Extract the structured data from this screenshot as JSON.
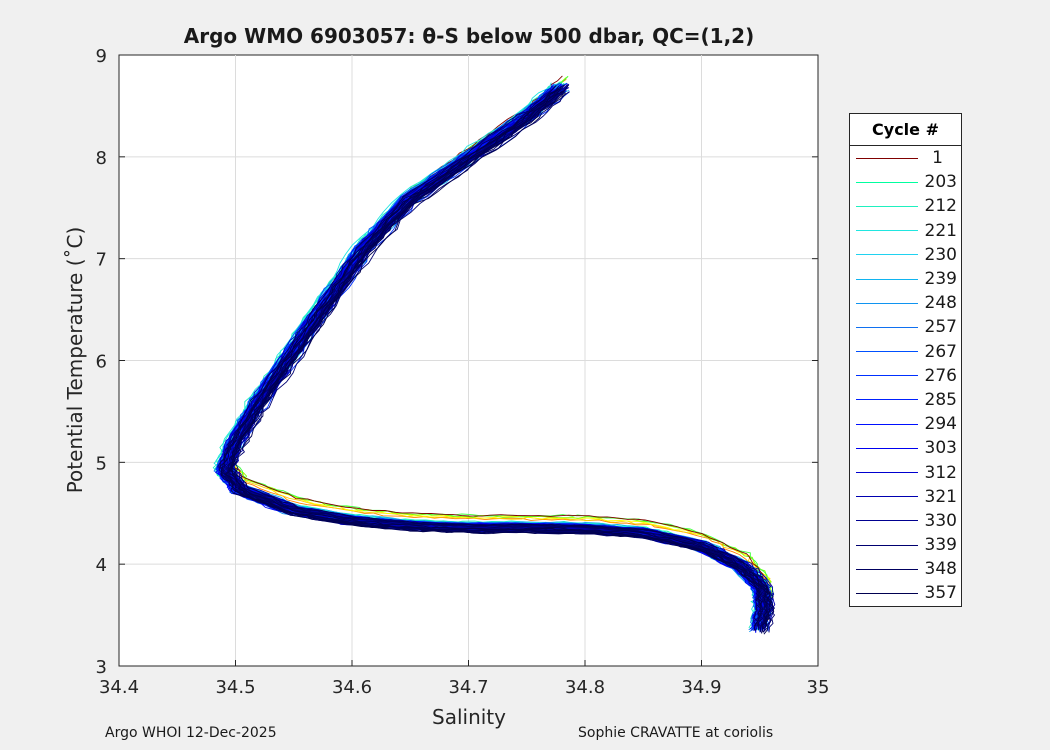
{
  "chart_data": {
    "type": "line",
    "title": "Argo WMO 6903057: θ-S below 500 dbar,  QC=(1,2)",
    "xlabel": "Salinity",
    "ylabel": "Potential Temperature (˚C)",
    "xlim": [
      34.4,
      35
    ],
    "ylim": [
      3,
      9
    ],
    "xticks": [
      "34.4",
      "34.5",
      "34.6",
      "34.7",
      "34.8",
      "34.9",
      "35"
    ],
    "yticks": [
      "3",
      "4",
      "5",
      "6",
      "7",
      "8",
      "9"
    ],
    "grid": true,
    "legend": {
      "title": "Cycle #",
      "placement": "outside-right"
    },
    "mean_profile": {
      "salinity": [
        34.78,
        34.75,
        34.7,
        34.65,
        34.61,
        34.58,
        34.55,
        34.52,
        34.5,
        34.492,
        34.505,
        34.55,
        34.6,
        34.65,
        34.7,
        34.75,
        34.8,
        34.85,
        34.9,
        34.935,
        34.952,
        34.955,
        34.95
      ],
      "theta": [
        8.7,
        8.4,
        8.0,
        7.6,
        7.1,
        6.6,
        6.1,
        5.6,
        5.2,
        4.95,
        4.75,
        4.55,
        4.45,
        4.4,
        4.38,
        4.38,
        4.37,
        4.33,
        4.2,
        4.0,
        3.8,
        3.6,
        3.35
      ]
    },
    "series": [
      {
        "name": "1",
        "color": "#800000"
      },
      {
        "name": "203",
        "color": "#00ff9f"
      },
      {
        "name": "212",
        "color": "#1ff0bf"
      },
      {
        "name": "221",
        "color": "#20e6e0"
      },
      {
        "name": "230",
        "color": "#20d2f0"
      },
      {
        "name": "239",
        "color": "#10b4f0"
      },
      {
        "name": "248",
        "color": "#1094f0"
      },
      {
        "name": "257",
        "color": "#1070f0"
      },
      {
        "name": "267",
        "color": "#0050ff"
      },
      {
        "name": "276",
        "color": "#0030ff"
      },
      {
        "name": "285",
        "color": "#0020ff"
      },
      {
        "name": "294",
        "color": "#0010ff"
      },
      {
        "name": "303",
        "color": "#0000f0"
      },
      {
        "name": "312",
        "color": "#0000d0"
      },
      {
        "name": "321",
        "color": "#0000b0"
      },
      {
        "name": "330",
        "color": "#000090"
      },
      {
        "name": "339",
        "color": "#000070"
      },
      {
        "name": "348",
        "color": "#000060"
      },
      {
        "name": "357",
        "color": "#000050"
      }
    ],
    "other_cycle_colors": [
      "#ff8000",
      "#ffd000",
      "#ffff00",
      "#80ff00",
      "#40ff40"
    ]
  },
  "footer": {
    "left": "Argo WHOI 12-Dec-2025",
    "right": "Sophie CRAVATTE at coriolis"
  }
}
